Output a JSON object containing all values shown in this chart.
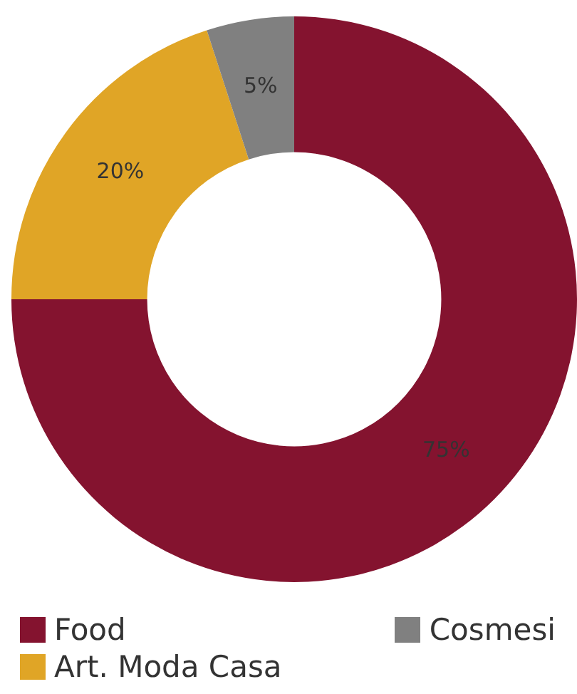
{
  "chart_data": {
    "type": "donut",
    "categories": [
      "Food",
      "Art. Moda Casa",
      "Cosmesi"
    ],
    "values": [
      75,
      20,
      5
    ],
    "colors": [
      "#84132f",
      "#e0a526",
      "#808080"
    ],
    "value_labels": [
      "75%",
      "20%",
      "5%"
    ],
    "legend": "bottom"
  }
}
